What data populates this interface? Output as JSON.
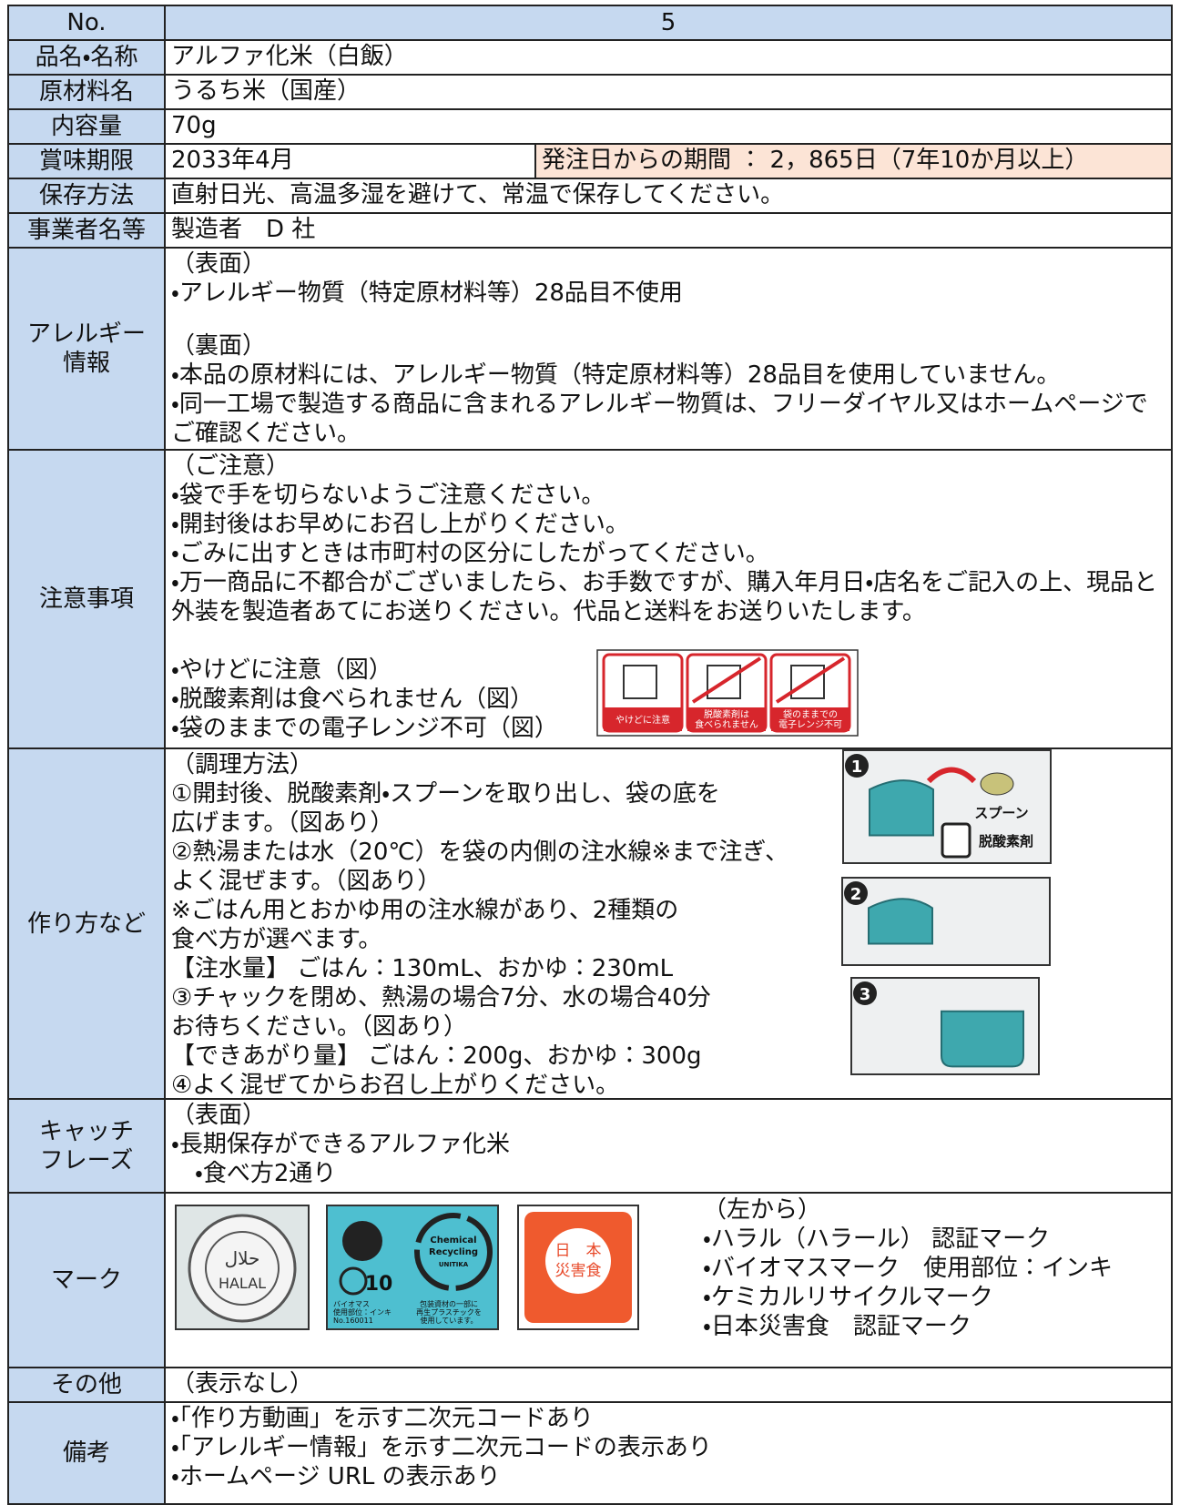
{
  "header": {
    "label": "No.",
    "value": "5"
  },
  "rows": [
    {
      "label": [
        "品名・名称"
      ],
      "lines": [
        "アルファ化米（白飯）"
      ]
    },
    {
      "label": [
        "原材料名"
      ],
      "lines": [
        "うるち米（国産）"
      ]
    },
    {
      "label": [
        "内容量"
      ],
      "lines": [
        "70g"
      ]
    },
    {
      "label": [
        "賞味期限"
      ],
      "lines": [
        "2033年4月"
      ],
      "note": "発注日からの期間 ： 2，865日（7年10か月以上）"
    },
    {
      "label": [
        "保存方法"
      ],
      "lines": [
        "直射日光、高温多湿を避けて、常温で保存してください。"
      ]
    },
    {
      "label": [
        "事業者名等"
      ],
      "lines": [
        "製造者　D 社"
      ]
    },
    {
      "label": [
        "アレルギー",
        "情報"
      ],
      "lines": [
        "（表面）",
        "・アレルギー物質（特定原材料等）28品目不使用"
      ],
      "lines2": [
        "（裏面）",
        "・本品の原材料には、アレルギー物質（特定原材料等）28品目を使用していません。",
        "・同一工場で製造する商品に含まれるアレルギー物質は、フリーダイヤル又はホームページでご確認ください。"
      ]
    },
    {
      "label": [
        "注意事項"
      ],
      "lines": [
        "（ご注意）",
        "・袋で手を切らないようご注意ください。",
        "・開封後はお早めにお召し上がりください。",
        "・ごみに出すときは市町村の区分にしたがってください。",
        "・万一商品に不都合がございましたら、お手数ですが、購入年月日・店名をご記入の上、現品と外装を製造者あてにお送りください。代品と送料をお送りいたします。"
      ],
      "lines2": [
        "・やけどに注意（図）",
        "・脱酸素剤は食べられません（図）",
        "・袋のままでの電子レンジ不可（図）"
      ],
      "pictograms": [
        [
          "やけどに注意"
        ],
        [
          "脱酸素剤は",
          "食べられません"
        ],
        [
          "袋のままでの",
          "電子レンジ不可"
        ]
      ]
    },
    {
      "label": [
        "作り方など"
      ],
      "lines": [
        "（調理方法）",
        "①開封後、脱酸素剤・スプーンを取り出し、袋の底を",
        "広げます。（図あり）",
        "②熱湯または水（20℃）を袋の内側の注水線※まで注ぎ、",
        "よく混ぜます。（図あり）",
        "※ごはん用とおかゆ用の注水線があり、2種類の",
        "食べ方が選べます。",
        "【注水量】 ごはん：130mL、おかゆ：230mL",
        "③チャックを閉め、熱湯の場合7分、水の場合40分",
        "お待ちください。（図あり）",
        "【できあがり量】 ごはん：200g、おかゆ：300g",
        "④よく混ぜてからお召し上がりください。"
      ],
      "steps": [
        {
          "number": "1",
          "labels": [
            "スプーン",
            "脱酸素剤"
          ]
        },
        {
          "number": "2"
        },
        {
          "number": "3"
        }
      ]
    },
    {
      "label": [
        "キャッチ",
        "フレーズ"
      ],
      "lines": [
        "（表面）",
        "・長期保存ができるアルファ化米",
        "・食べ方2通り"
      ]
    },
    {
      "label": [
        "マーク"
      ],
      "lines": [
        "（左から）",
        "・ハラル（ハラール） 認証マーク",
        "・バイオマスマーク　使用部位：インキ",
        "・ケミカルリサイクルマーク",
        "・日本災害食　認証マーク"
      ],
      "marks": {
        "halal": [
          "حلال",
          "HALAL"
        ],
        "biomass_number": "10",
        "biomass": [
          "バイオマス",
          "使用部位：インキ",
          "No.160011"
        ],
        "recycling": [
          "Chemical",
          "Recycling",
          "UNITIKA"
        ],
        "recycled_note": [
          "包装資材の一部に",
          "再生プラスチックを",
          "使用しています。"
        ],
        "disaster": [
          "日　本",
          "災害食"
        ]
      }
    },
    {
      "label": [
        "その他"
      ],
      "lines": [
        "（表示なし）"
      ]
    },
    {
      "label": [
        "備考"
      ],
      "lines": [
        "・「作り方動画」を示す二次元コードあり",
        "・「アレルギー情報」を示す二次元コードの表示あり",
        "・ホームページ URL の表示あり"
      ]
    }
  ]
}
